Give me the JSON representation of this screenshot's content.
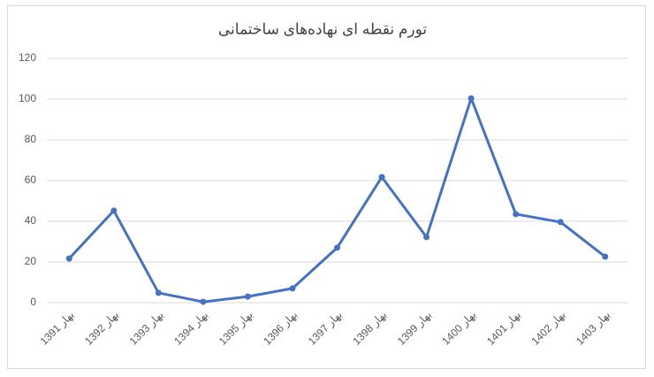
{
  "chart_data": {
    "type": "line",
    "title": "تورم نقطه ای نهاده‌های ساختمانی",
    "categories": [
      "بهار 1391",
      "بهار 1392",
      "بهار 1393",
      "بهار 1394",
      "بهار 1395",
      "بهار 1396",
      "بهار 1397",
      "بهار 1398",
      "بهار 1399",
      "بهار 1400",
      "بهار 1401",
      "بهار 1402",
      "بهار 1403"
    ],
    "series": [
      {
        "color": "#4472c4",
        "values": [
          21.7,
          45.2,
          4.8,
          0.4,
          3,
          7,
          27,
          61.7,
          32.2,
          100.4,
          43.5,
          39.6,
          22.6
        ]
      }
    ],
    "ylim": [
      0,
      120
    ],
    "yticks": [
      0,
      20,
      40,
      60,
      80,
      100,
      120
    ],
    "grid": true
  }
}
